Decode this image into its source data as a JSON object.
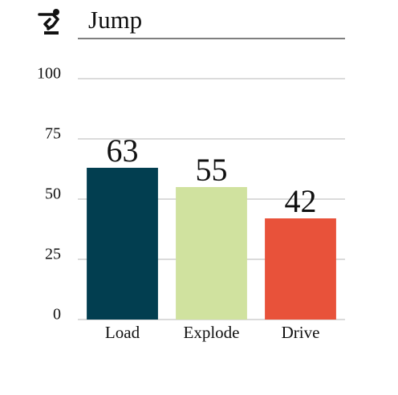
{
  "chart_data": {
    "type": "bar",
    "title": "Jump",
    "categories": [
      "Load",
      "Explode",
      "Drive"
    ],
    "values": [
      63,
      55,
      42
    ],
    "colors": [
      "#023e50",
      "#d0e29f",
      "#e8523a"
    ],
    "ylim": [
      0,
      100
    ],
    "yticks": [
      0,
      25,
      50,
      75,
      100
    ],
    "grid": true
  }
}
